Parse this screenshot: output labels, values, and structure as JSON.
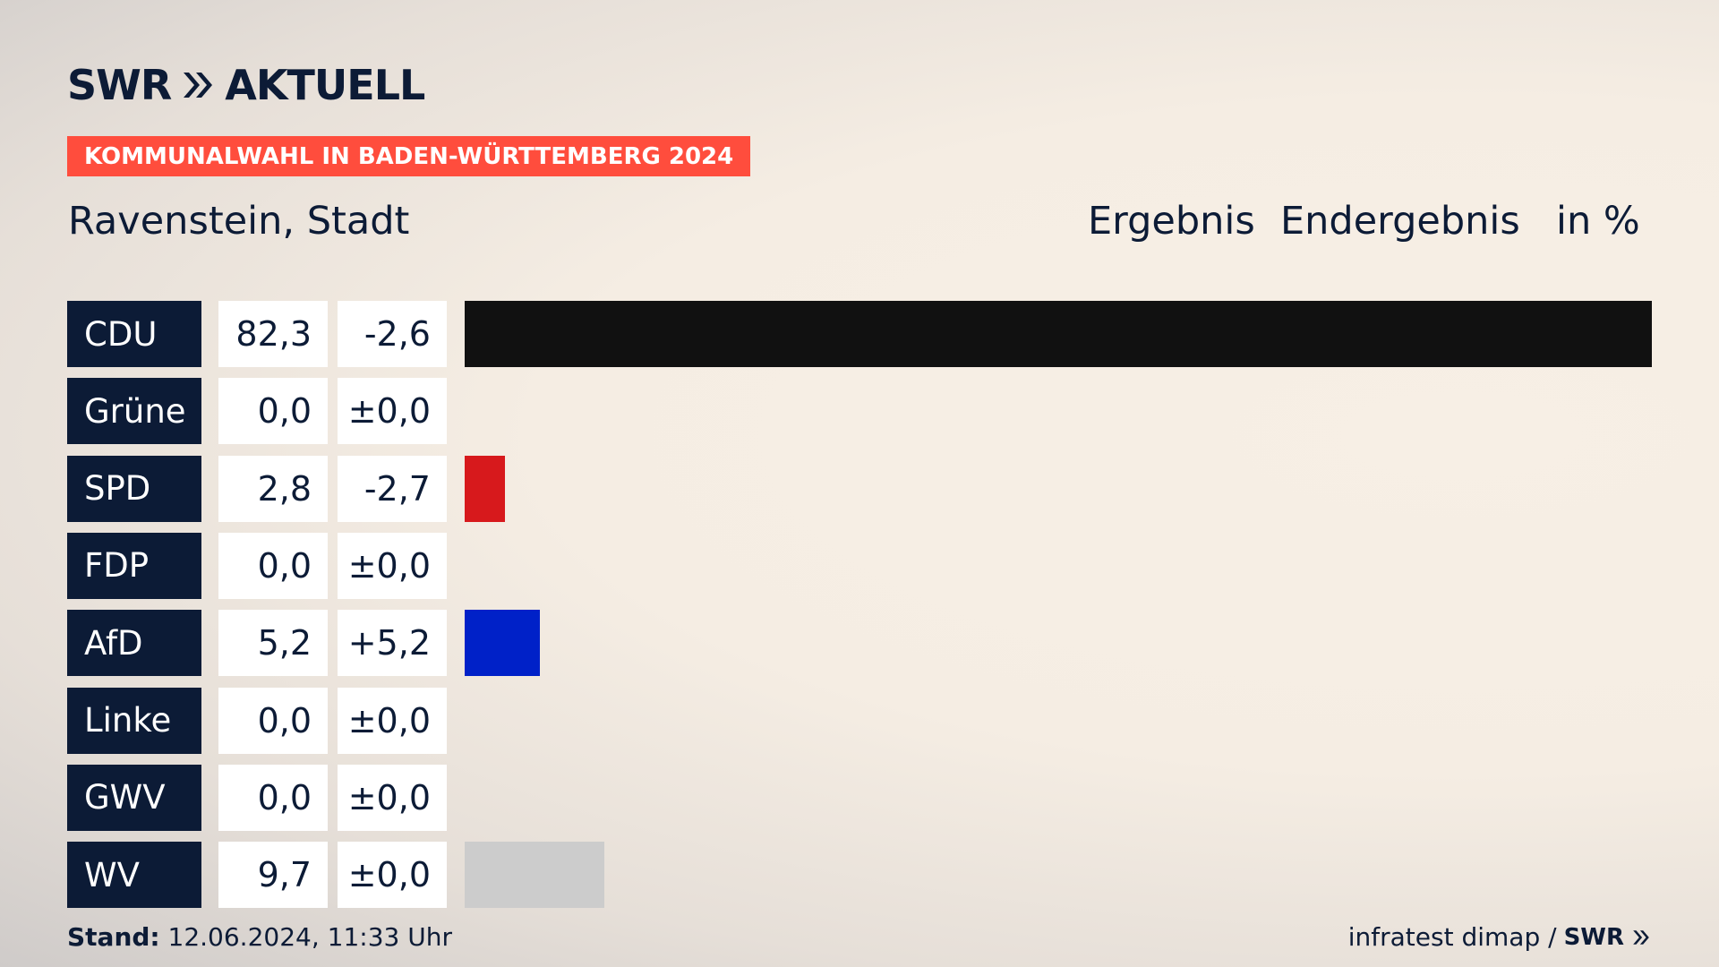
{
  "brand": {
    "logo_text": "SWR",
    "logo_text_2": "AKTUELL"
  },
  "banner": "KOMMUNALWAHL IN BADEN-WÜRTTEMBERG 2024",
  "place": "Ravenstein, Stadt",
  "headers": {
    "result": "Ergebnis",
    "final": "Endergebnis",
    "unit": "in %"
  },
  "footer": {
    "stand_label": "Stand:",
    "stand_value": " 12.06.2024, 11:33 Uhr",
    "source": "infratest dimap /",
    "source_brand": "SWR"
  },
  "colors": {
    "navy": "#0c1b36",
    "banner": "#ff4d3d"
  },
  "chart_data": {
    "type": "bar",
    "categories": [
      "CDU",
      "Grüne",
      "SPD",
      "FDP",
      "AfD",
      "Linke",
      "GWV",
      "WV"
    ],
    "values": [
      82.3,
      0.0,
      2.8,
      0.0,
      5.2,
      0.0,
      0.0,
      9.7
    ],
    "value_labels": [
      "82,3",
      "0,0",
      "2,8",
      "0,0",
      "5,2",
      "0,0",
      "0,0",
      "9,7"
    ],
    "diff_labels": [
      "-2,6",
      "±0,0",
      "-2,7",
      "±0,0",
      "+5,2",
      "±0,0",
      "±0,0",
      "±0,0"
    ],
    "bar_colors": [
      "#111111",
      "#1f9f3a",
      "#d7191c",
      "#f5d700",
      "#0021c8",
      "#b5006f",
      "#8a8a8a",
      "#cccccc"
    ],
    "xlim": [
      0,
      82.3
    ]
  }
}
